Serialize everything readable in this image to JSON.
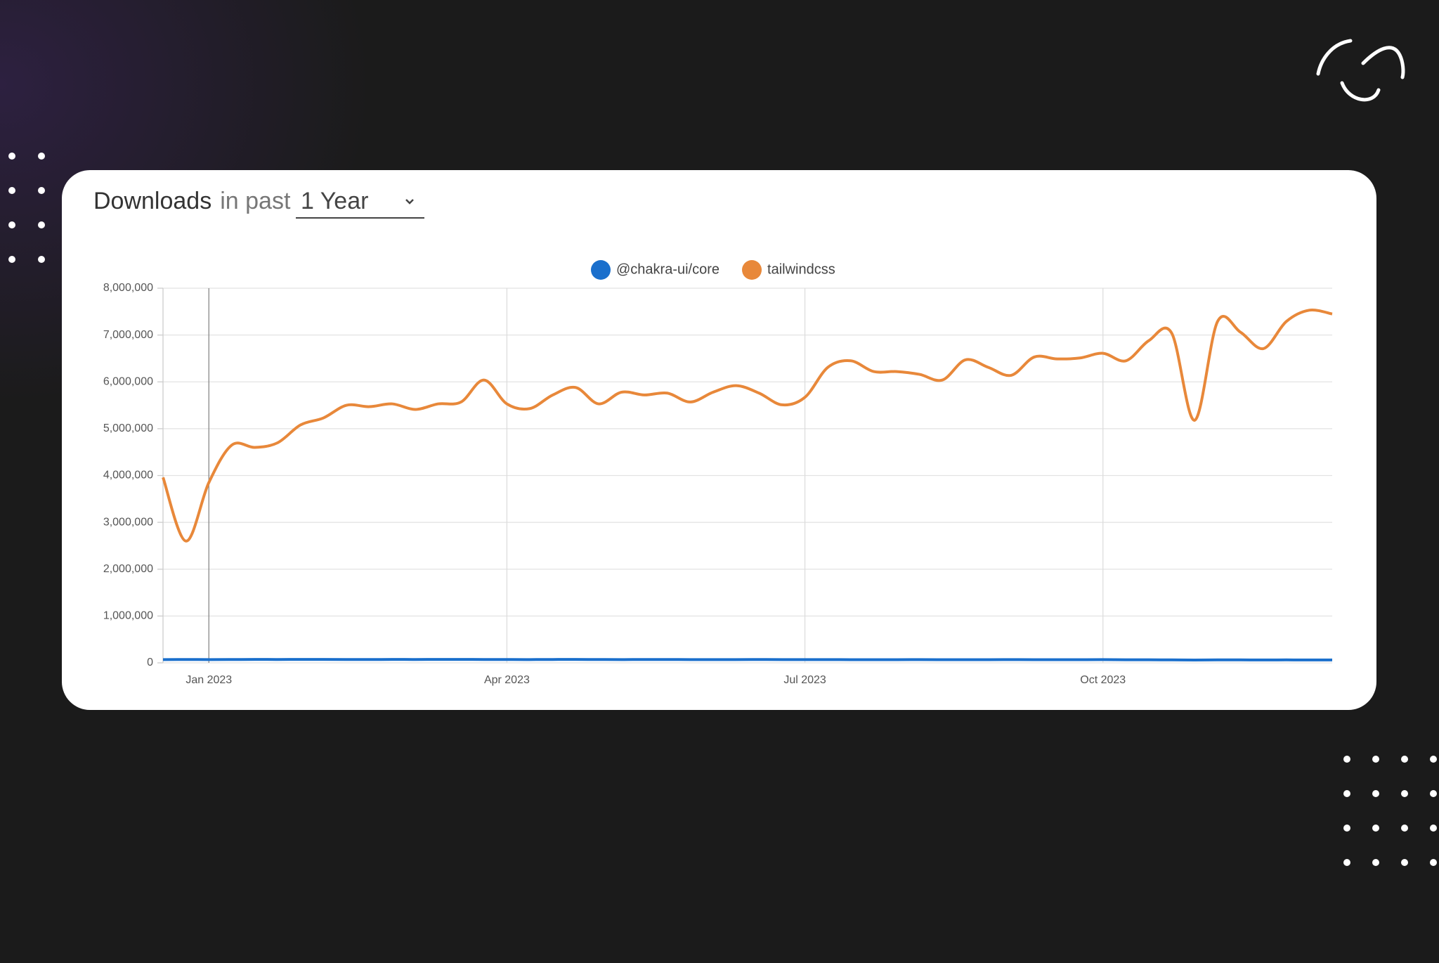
{
  "header": {
    "title": "Downloads",
    "subtitle": "in past",
    "period": "1 Year"
  },
  "chart_data": {
    "type": "line",
    "categories": [
      null,
      null,
      "Jan 2023",
      null,
      null,
      null,
      null,
      null,
      null,
      null,
      null,
      null,
      null,
      null,
      null,
      "Apr 2023",
      null,
      null,
      null,
      null,
      null,
      null,
      null,
      null,
      null,
      null,
      null,
      null,
      "Jul 2023",
      null,
      null,
      null,
      null,
      null,
      null,
      null,
      null,
      null,
      null,
      null,
      null,
      "Oct 2023",
      null,
      null,
      null,
      null,
      null,
      null,
      null,
      null,
      null,
      null
    ],
    "series": [
      {
        "name": "@chakra-ui/core",
        "color": "#1a6fcc",
        "values": [
          70000,
          72000,
          70000,
          71000,
          73000,
          72000,
          74000,
          73000,
          72000,
          71000,
          73000,
          72000,
          74000,
          73000,
          72000,
          71000,
          70000,
          72000,
          73000,
          71000,
          70000,
          72000,
          71000,
          70000,
          69000,
          70000,
          71000,
          70000,
          69000,
          70000,
          68000,
          67000,
          68000,
          69000,
          68000,
          67000,
          68000,
          69000,
          68000,
          67000,
          68000,
          69000,
          66000,
          65000,
          64000,
          60000,
          64000,
          63000,
          62000,
          63000,
          62000,
          61000
        ]
      },
      {
        "name": "tailwindcss",
        "color": "#e8883a",
        "values": [
          3960000,
          2600000,
          3850000,
          4650000,
          4600000,
          4700000,
          5080000,
          5230000,
          5500000,
          5470000,
          5530000,
          5410000,
          5530000,
          5570000,
          6040000,
          5530000,
          5430000,
          5720000,
          5880000,
          5530000,
          5780000,
          5720000,
          5760000,
          5570000,
          5780000,
          5920000,
          5760000,
          5510000,
          5670000,
          6310000,
          6450000,
          6220000,
          6220000,
          6160000,
          6040000,
          6470000,
          6310000,
          6140000,
          6530000,
          6490000,
          6510000,
          6610000,
          6450000,
          6880000,
          7040000,
          5180000,
          7290000,
          7060000,
          6710000,
          7290000,
          7530000,
          7450000
        ]
      }
    ],
    "ylim": [
      0,
      8000000
    ],
    "yticks": [
      0,
      {
        "value": 1000000,
        "label": "1,000,000"
      },
      {
        "value": 2000000,
        "label": "2,000,000"
      },
      {
        "value": 3000000,
        "label": "3,000,000"
      },
      {
        "value": 4000000,
        "label": "4,000,000"
      },
      {
        "value": 5000000,
        "label": "5,000,000"
      },
      {
        "value": 6000000,
        "label": "6,000,000"
      },
      {
        "value": 7000000,
        "label": "7,000,000"
      },
      {
        "value": 8000000,
        "label": "8,000,000"
      }
    ],
    "grid": true,
    "legend": "top"
  }
}
